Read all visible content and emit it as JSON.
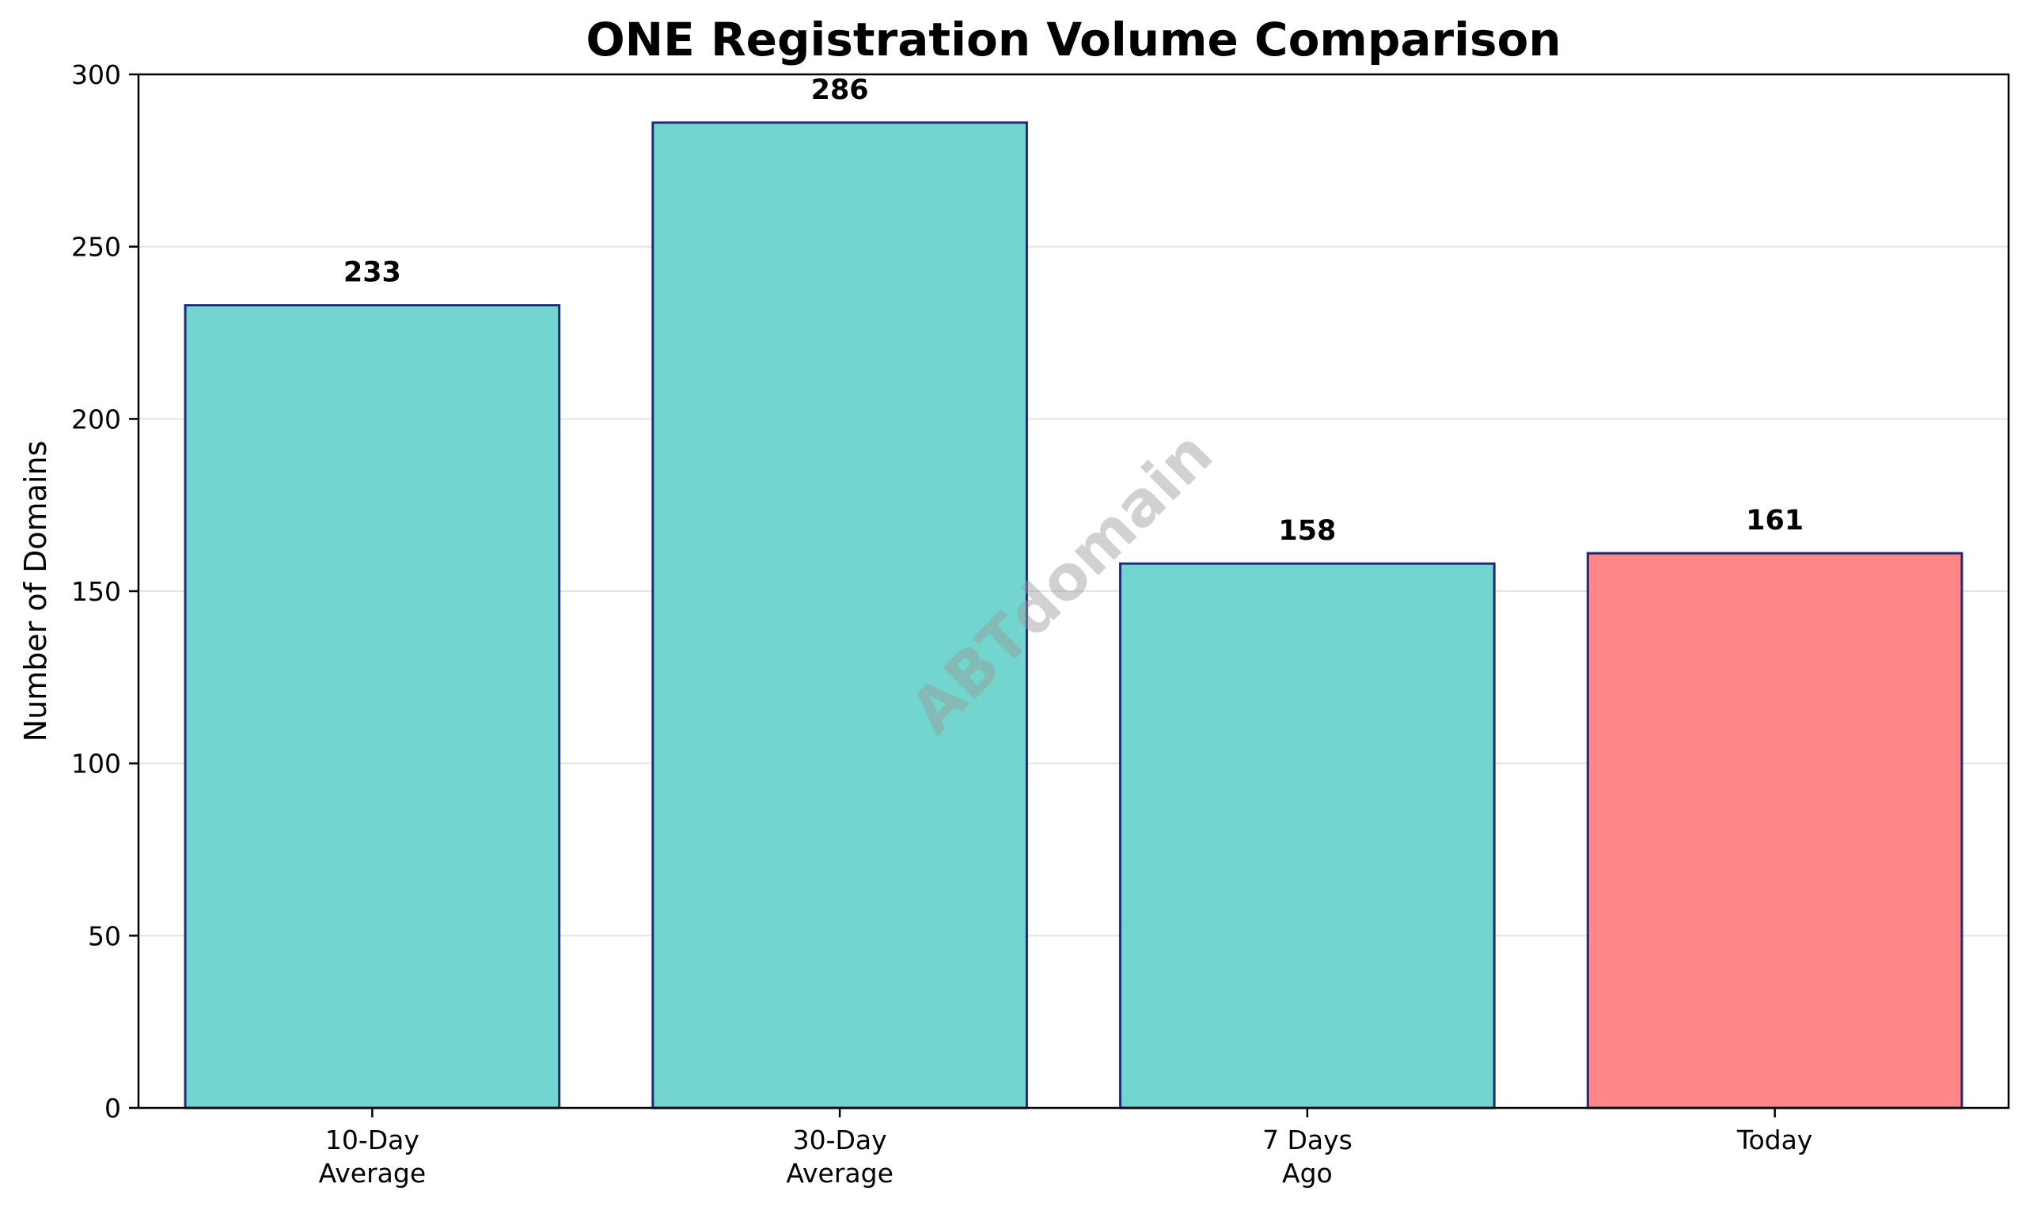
{
  "watermark": "ABTdomain",
  "chart_data": {
    "type": "bar",
    "title": "ONE Registration Volume Comparison",
    "xlabel": "",
    "ylabel": "Number of Domains",
    "categories": [
      [
        "10-Day",
        "Average"
      ],
      [
        "30-Day",
        "Average"
      ],
      [
        "7 Days",
        "Ago"
      ],
      [
        "Today"
      ]
    ],
    "values": [
      233,
      286,
      158,
      161
    ],
    "data_labels": [
      "233",
      "286",
      "158",
      "161"
    ],
    "ylim": [
      0,
      300
    ],
    "yticks": [
      0,
      50,
      100,
      150,
      200,
      250,
      300
    ],
    "grid": "y",
    "colors": {
      "default_bar": "#72d6cf",
      "highlight_bar": "#ff8787",
      "bar_edge": "#1f2a7a",
      "grid": "#e3e3e3",
      "axis": "#000000"
    },
    "highlight_index": 3
  }
}
